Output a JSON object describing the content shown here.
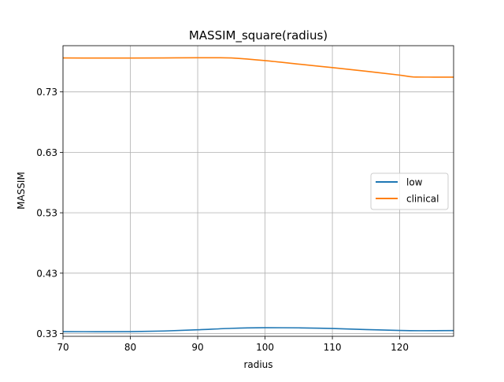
{
  "chart_data": {
    "type": "line",
    "title": "MASSIM_square(radius)",
    "xlabel": "radius",
    "ylabel": "MASSIM",
    "xlim": [
      70,
      128
    ],
    "ylim": [
      0.3255,
      0.8065
    ],
    "xticks": [
      70,
      80,
      90,
      100,
      110,
      120
    ],
    "yticks": [
      0.33,
      0.43,
      0.53,
      0.63,
      0.73
    ],
    "ytick_labels": [
      "0.33",
      "0.43",
      "0.53",
      "0.63",
      "0.73"
    ],
    "grid": true,
    "legend_position": "center-right",
    "series": [
      {
        "name": "low",
        "color": "#1f77b4",
        "x": [
          70,
          75,
          80,
          85,
          90,
          95,
          100,
          105,
          110,
          115,
          120,
          123,
          128
        ],
        "y": [
          0.3333,
          0.3331,
          0.3333,
          0.3343,
          0.3363,
          0.3387,
          0.3397,
          0.3395,
          0.3385,
          0.3367,
          0.3352,
          0.3348,
          0.335
        ]
      },
      {
        "name": "clinical",
        "color": "#ff7f0e",
        "x": [
          70,
          75,
          80,
          85,
          90,
          93,
          95,
          100,
          105,
          110,
          115,
          120,
          122,
          125,
          128
        ],
        "y": [
          0.7862,
          0.786,
          0.786,
          0.7862,
          0.7866,
          0.7866,
          0.7862,
          0.7818,
          0.776,
          0.7702,
          0.7642,
          0.7578,
          0.7548,
          0.7545,
          0.7545
        ]
      }
    ]
  }
}
